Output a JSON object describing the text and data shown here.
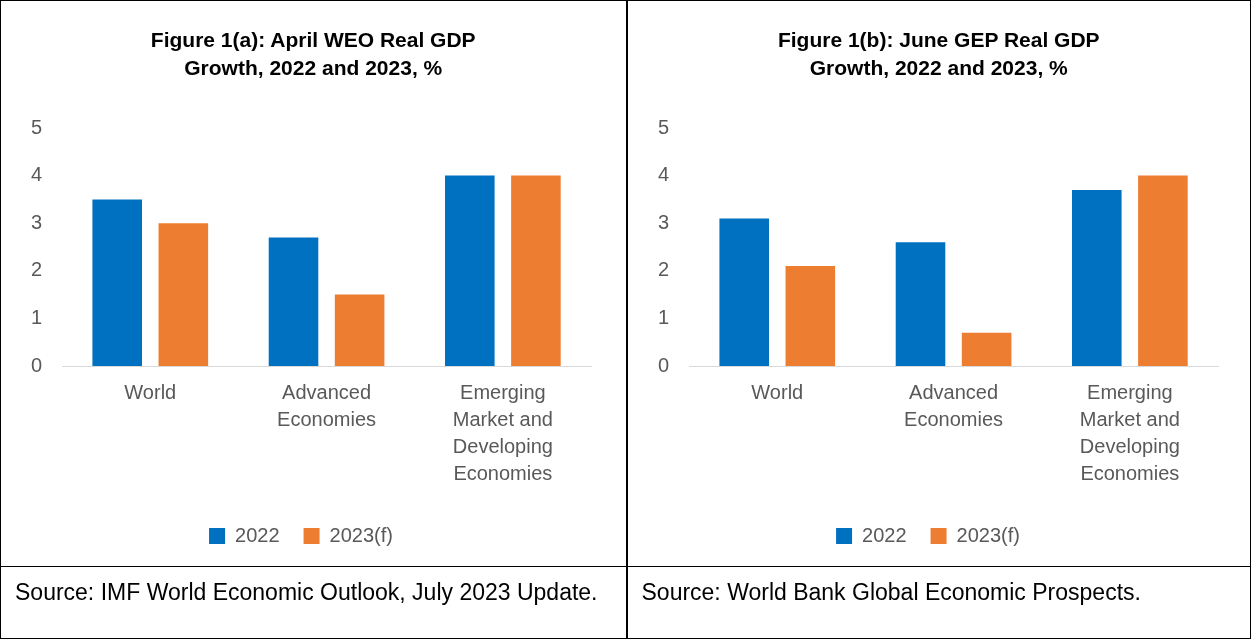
{
  "chart_data": [
    {
      "type": "bar",
      "title": "Figure 1(a): April WEO Real GDP Growth, 2022 and 2023, %",
      "categories": [
        "World",
        "Advanced Economies",
        "Emerging Market and Developing Economies"
      ],
      "series": [
        {
          "name": "2022",
          "color": "#0070c0",
          "values": [
            3.5,
            2.7,
            4.0
          ]
        },
        {
          "name": "2023(f)",
          "color": "#ed7d31",
          "values": [
            3.0,
            1.5,
            4.0
          ]
        }
      ],
      "ylim": [
        0,
        5
      ],
      "yticks": [
        0,
        1,
        2,
        3,
        4,
        5
      ],
      "grid": false,
      "legend": "bottom",
      "annotations": [
        "Source: IMF World Economic Outlook, July 2023 Update."
      ]
    },
    {
      "type": "bar",
      "title": "Figure 1(b): June GEP Real GDP Growth, 2022 and 2023, %",
      "categories": [
        "World",
        "Advanced Economies",
        "Emerging Market and Developing Economies"
      ],
      "series": [
        {
          "name": "2022",
          "color": "#0070c0",
          "values": [
            3.1,
            2.6,
            3.7
          ]
        },
        {
          "name": "2023(f)",
          "color": "#ed7d31",
          "values": [
            2.1,
            0.7,
            4.0
          ]
        }
      ],
      "ylim": [
        0,
        5
      ],
      "yticks": [
        0,
        1,
        2,
        3,
        4,
        5
      ],
      "grid": false,
      "legend": "bottom",
      "annotations": [
        "Source: World Bank Global Economic Prospects."
      ]
    }
  ]
}
